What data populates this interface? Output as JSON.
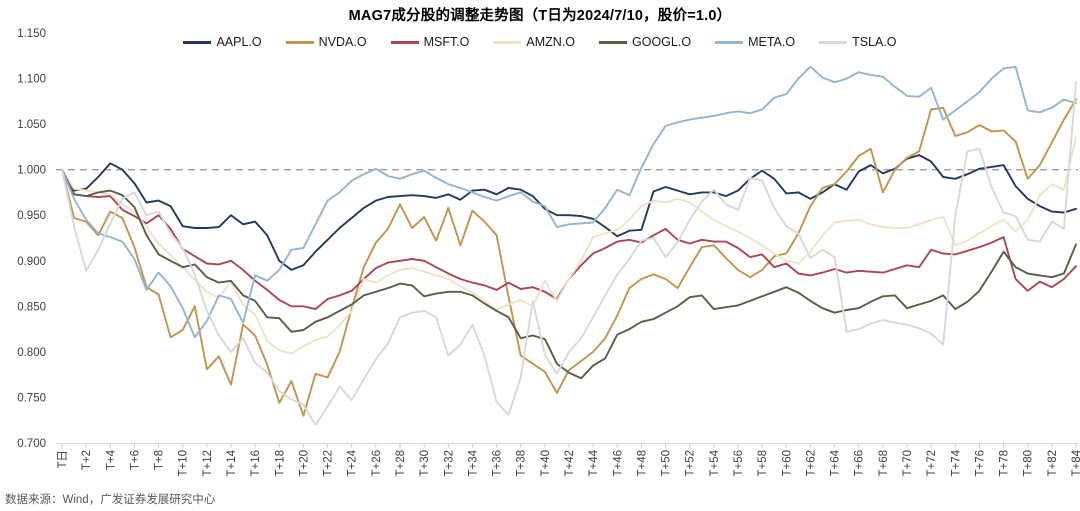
{
  "header": {
    "title": "MAG7成分股的调整走势图（T日为2024/7/10，股价=1.0）"
  },
  "footer": {
    "source_note": "数据来源：Wind，广发证券发展研究中心"
  },
  "chart_data": {
    "type": "line",
    "title": "MAG7成分股的调整走势图（T日为2024/7/10，股价=1.0）",
    "legend_position": "top",
    "grid": "off",
    "reference_line": {
      "value": 1.0,
      "style": "dashed",
      "color": "#9d9d9d"
    },
    "x_axis": {
      "day_range": [
        0,
        84
      ],
      "tick_interval_days": 2,
      "tick_labels": [
        "T日",
        "T+2",
        "T+4",
        "T+6",
        "T+8",
        "T+10",
        "T+12",
        "T+14",
        "T+16",
        "T+18",
        "T+20",
        "T+22",
        "T+24",
        "T+26",
        "T+28",
        "T+30",
        "T+32",
        "T+34",
        "T+36",
        "T+38",
        "T+40",
        "T+42",
        "T+44",
        "T+46",
        "T+48",
        "T+50",
        "T+52",
        "T+54",
        "T+56",
        "T+58",
        "T+60",
        "T+62",
        "T+64",
        "T+66",
        "T+68",
        "T+70",
        "T+72",
        "T+74",
        "T+76",
        "T+78",
        "T+80",
        "T+82",
        "T+84"
      ],
      "label_color": "#404040",
      "axis_color": "#d9d9d9"
    },
    "y_axis": {
      "range": [
        0.7,
        1.15
      ],
      "tick_labels": [
        "1.150",
        "1.100",
        "1.050",
        "1.000",
        "0.950",
        "0.900",
        "0.850",
        "0.800",
        "0.750",
        "0.700"
      ],
      "label_color": "#404040"
    },
    "series": [
      {
        "name": "AAPL.O",
        "color": "#24395B",
        "values": [
          1.0,
          0.977,
          0.979,
          0.992,
          1.007,
          1.0,
          0.985,
          0.964,
          0.966,
          0.96,
          0.938,
          0.936,
          0.936,
          0.937,
          0.95,
          0.94,
          0.943,
          0.928,
          0.9,
          0.89,
          0.895,
          0.91,
          0.923,
          0.936,
          0.947,
          0.958,
          0.966,
          0.97,
          0.971,
          0.972,
          0.971,
          0.969,
          0.973,
          0.967,
          0.977,
          0.978,
          0.973,
          0.98,
          0.978,
          0.971,
          0.957,
          0.95,
          0.95,
          0.949,
          0.946,
          0.937,
          0.927,
          0.933,
          0.934,
          0.976,
          0.981,
          0.977,
          0.973,
          0.975,
          0.975,
          0.971,
          0.977,
          0.99,
          0.999,
          0.99,
          0.974,
          0.975,
          0.968,
          0.975,
          0.984,
          0.978,
          0.998,
          1.005,
          0.996,
          1.001,
          1.012,
          1.016,
          1.009,
          0.992,
          0.99,
          0.995,
          1.001,
          1.003,
          1.005,
          0.982,
          0.968,
          0.96,
          0.954,
          0.953,
          0.957
        ]
      },
      {
        "name": "NVDA.O",
        "color": "#C2944E",
        "values": [
          1.0,
          0.947,
          0.943,
          0.928,
          0.954,
          0.947,
          0.915,
          0.871,
          0.863,
          0.816,
          0.824,
          0.85,
          0.781,
          0.795,
          0.764,
          0.83,
          0.818,
          0.786,
          0.744,
          0.768,
          0.73,
          0.776,
          0.772,
          0.8,
          0.848,
          0.893,
          0.92,
          0.935,
          0.962,
          0.936,
          0.948,
          0.922,
          0.958,
          0.917,
          0.955,
          0.943,
          0.928,
          0.86,
          0.796,
          0.787,
          0.778,
          0.755,
          0.78,
          0.79,
          0.8,
          0.815,
          0.84,
          0.87,
          0.88,
          0.885,
          0.88,
          0.87,
          0.893,
          0.915,
          0.917,
          0.903,
          0.89,
          0.882,
          0.89,
          0.905,
          0.908,
          0.93,
          0.96,
          0.98,
          0.984,
          0.998,
          1.015,
          1.023,
          0.975,
          1.0,
          1.013,
          1.02,
          1.066,
          1.068,
          1.037,
          1.041,
          1.049,
          1.042,
          1.043,
          1.031,
          0.99,
          1.005,
          1.03,
          1.055,
          1.077
        ]
      },
      {
        "name": "MSFT.O",
        "color": "#A94752",
        "values": [
          1.0,
          0.973,
          0.971,
          0.97,
          0.971,
          0.956,
          0.949,
          0.941,
          0.95,
          0.935,
          0.913,
          0.905,
          0.897,
          0.896,
          0.9,
          0.89,
          0.878,
          0.868,
          0.857,
          0.85,
          0.85,
          0.847,
          0.858,
          0.862,
          0.867,
          0.88,
          0.892,
          0.898,
          0.9,
          0.902,
          0.9,
          0.893,
          0.886,
          0.88,
          0.876,
          0.873,
          0.868,
          0.876,
          0.869,
          0.871,
          0.866,
          0.858,
          0.88,
          0.895,
          0.908,
          0.914,
          0.921,
          0.923,
          0.92,
          0.928,
          0.935,
          0.923,
          0.919,
          0.923,
          0.921,
          0.921,
          0.914,
          0.904,
          0.907,
          0.893,
          0.897,
          0.886,
          0.884,
          0.887,
          0.891,
          0.887,
          0.889,
          0.888,
          0.887,
          0.891,
          0.895,
          0.893,
          0.912,
          0.908,
          0.907,
          0.911,
          0.915,
          0.92,
          0.926,
          0.88,
          0.867,
          0.877,
          0.871,
          0.88,
          0.894
        ]
      },
      {
        "name": "AMZN.O",
        "color": "#EFE3C4",
        "values": [
          1.0,
          0.979,
          0.977,
          0.975,
          0.973,
          0.962,
          0.954,
          0.937,
          0.919,
          0.906,
          0.893,
          0.879,
          0.866,
          0.859,
          0.877,
          0.851,
          0.841,
          0.812,
          0.802,
          0.798,
          0.806,
          0.813,
          0.817,
          0.829,
          0.845,
          0.88,
          0.876,
          0.884,
          0.89,
          0.892,
          0.888,
          0.884,
          0.88,
          0.872,
          0.865,
          0.856,
          0.846,
          0.852,
          0.857,
          0.85,
          0.878,
          0.856,
          0.88,
          0.9,
          0.926,
          0.93,
          0.934,
          0.945,
          0.96,
          0.966,
          0.964,
          0.968,
          0.964,
          0.954,
          0.945,
          0.938,
          0.932,
          0.925,
          0.917,
          0.908,
          0.9,
          0.897,
          0.91,
          0.928,
          0.942,
          0.944,
          0.945,
          0.94,
          0.937,
          0.936,
          0.936,
          0.94,
          0.945,
          0.948,
          0.917,
          0.922,
          0.93,
          0.938,
          0.945,
          0.932,
          0.945,
          0.972,
          0.984,
          0.978,
          1.036
        ]
      },
      {
        "name": "GOOGL.O",
        "color": "#575F48",
        "values": [
          1.0,
          0.973,
          0.971,
          0.975,
          0.977,
          0.972,
          0.959,
          0.928,
          0.907,
          0.9,
          0.893,
          0.896,
          0.882,
          0.876,
          0.878,
          0.862,
          0.856,
          0.838,
          0.837,
          0.822,
          0.824,
          0.833,
          0.838,
          0.845,
          0.852,
          0.862,
          0.866,
          0.87,
          0.875,
          0.873,
          0.861,
          0.864,
          0.866,
          0.866,
          0.862,
          0.853,
          0.845,
          0.838,
          0.815,
          0.818,
          0.814,
          0.787,
          0.777,
          0.771,
          0.785,
          0.793,
          0.819,
          0.825,
          0.833,
          0.836,
          0.843,
          0.85,
          0.86,
          0.862,
          0.847,
          0.849,
          0.851,
          0.856,
          0.861,
          0.866,
          0.871,
          0.865,
          0.856,
          0.848,
          0.843,
          0.846,
          0.848,
          0.855,
          0.861,
          0.862,
          0.848,
          0.852,
          0.856,
          0.862,
          0.847,
          0.855,
          0.867,
          0.888,
          0.91,
          0.893,
          0.886,
          0.884,
          0.882,
          0.886,
          0.918
        ]
      },
      {
        "name": "META.O",
        "color": "#93B5D0",
        "values": [
          1.0,
          0.968,
          0.945,
          0.93,
          0.926,
          0.921,
          0.902,
          0.868,
          0.887,
          0.872,
          0.848,
          0.816,
          0.834,
          0.862,
          0.858,
          0.832,
          0.884,
          0.878,
          0.89,
          0.912,
          0.914,
          0.94,
          0.966,
          0.975,
          0.988,
          0.995,
          1.001,
          0.993,
          0.99,
          0.995,
          0.999,
          0.991,
          0.984,
          0.98,
          0.975,
          0.97,
          0.966,
          0.971,
          0.975,
          0.965,
          0.96,
          0.937,
          0.94,
          0.941,
          0.942,
          0.958,
          0.978,
          0.972,
          1.002,
          1.028,
          1.048,
          1.052,
          1.055,
          1.057,
          1.059,
          1.062,
          1.064,
          1.062,
          1.066,
          1.079,
          1.083,
          1.1,
          1.113,
          1.101,
          1.096,
          1.1,
          1.107,
          1.104,
          1.102,
          1.091,
          1.081,
          1.08,
          1.09,
          1.055,
          1.065,
          1.075,
          1.085,
          1.1,
          1.111,
          1.113,
          1.065,
          1.063,
          1.068,
          1.077,
          1.073
        ]
      },
      {
        "name": "TSLA.O",
        "color": "#D8D8D8",
        "values": [
          1.0,
          0.938,
          0.889,
          0.912,
          0.941,
          0.968,
          0.975,
          0.95,
          0.954,
          0.93,
          0.914,
          0.885,
          0.845,
          0.818,
          0.8,
          0.815,
          0.788,
          0.777,
          0.757,
          0.748,
          0.742,
          0.72,
          0.74,
          0.762,
          0.747,
          0.77,
          0.792,
          0.809,
          0.838,
          0.843,
          0.845,
          0.838,
          0.796,
          0.808,
          0.83,
          0.796,
          0.745,
          0.731,
          0.772,
          0.856,
          0.797,
          0.776,
          0.8,
          0.815,
          0.838,
          0.862,
          0.885,
          0.902,
          0.922,
          0.925,
          0.904,
          0.92,
          0.945,
          0.965,
          0.978,
          0.962,
          0.956,
          0.991,
          0.988,
          0.958,
          0.938,
          0.93,
          0.903,
          0.912,
          0.904,
          0.822,
          0.825,
          0.831,
          0.835,
          0.832,
          0.83,
          0.826,
          0.82,
          0.808,
          0.95,
          1.02,
          1.023,
          0.981,
          0.953,
          0.949,
          0.923,
          0.921,
          0.943,
          0.935,
          1.096
        ]
      }
    ]
  }
}
